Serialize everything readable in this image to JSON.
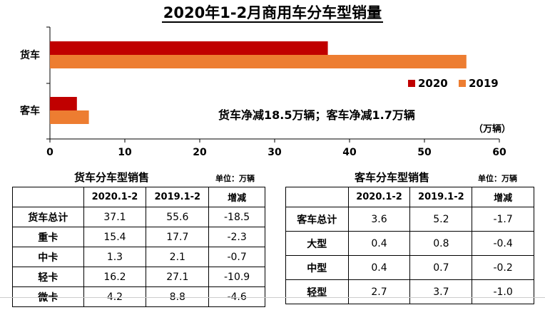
{
  "chart_data": {
    "type": "bar",
    "orientation": "horizontal",
    "title": "2020年1-2月商用车分车型销量",
    "categories": [
      "货车",
      "客车"
    ],
    "series": [
      {
        "name": "2020",
        "color": "#C00000",
        "values": [
          37.1,
          3.6
        ]
      },
      {
        "name": "2019",
        "color": "#ED7D31",
        "values": [
          55.6,
          5.2
        ]
      }
    ],
    "xlim": [
      0,
      60
    ],
    "xticks": [
      "0",
      "10",
      "20",
      "30",
      "40",
      "50",
      "60"
    ],
    "unit": "（万辆）",
    "annotation": "货车净减18.5万辆；客车净减1.7万辆",
    "legend_position": "right"
  },
  "truck_table": {
    "title": "货车分车型销售",
    "unit": "单位：万辆",
    "headers": [
      "",
      "2020.1-2",
      "2019.1-2",
      "增减"
    ],
    "rows": [
      [
        "货车总计",
        "37.1",
        "55.6",
        "-18.5"
      ],
      [
        "重卡",
        "15.4",
        "17.7",
        "-2.3"
      ],
      [
        "中卡",
        "1.3",
        "2.1",
        "-0.7"
      ],
      [
        "轻卡",
        "16.2",
        "27.1",
        "-10.9"
      ],
      [
        "微卡",
        "4.2",
        "8.8",
        "-4.6"
      ]
    ]
  },
  "bus_table": {
    "title": "客车分车型销售",
    "unit": "单位：万辆",
    "headers": [
      "",
      "2020.1-2",
      "2019.1-2",
      "增减"
    ],
    "rows": [
      [
        "客车总计",
        "3.6",
        "5.2",
        "-1.7"
      ],
      [
        "大型",
        "0.4",
        "0.8",
        "-0.4"
      ],
      [
        "中型",
        "0.4",
        "0.7",
        "-0.2"
      ],
      [
        "轻型",
        "2.7",
        "3.7",
        "-1.0"
      ]
    ]
  }
}
